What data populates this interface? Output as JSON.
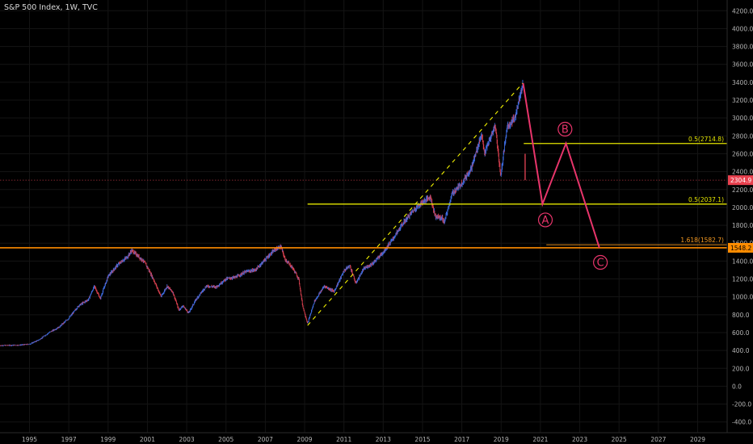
{
  "chart_data": {
    "type": "candlestick",
    "title": "S&P 500 Index, 1W, TVC",
    "xlabel": "",
    "ylabel": "",
    "xlim": [
      1993.5,
      2030.5
    ],
    "ylim": [
      -520,
      4320
    ],
    "x_ticks": [
      "1995",
      "1997",
      "1999",
      "2001",
      "2003",
      "2005",
      "2007",
      "2009",
      "2011",
      "2013",
      "2015",
      "2017",
      "2019",
      "2021",
      "2023",
      "2025",
      "2027",
      "2029"
    ],
    "y_ticks": [
      "4200.0",
      "4000.0",
      "3800.0",
      "3600.0",
      "3400.0",
      "3200.0",
      "3000.0",
      "2800.0",
      "2600.0",
      "2400.0",
      "2200.0",
      "2000.0",
      "1800.0",
      "1600.0",
      "1400.0",
      "1200.0",
      "1000.0",
      "800.0",
      "600.0",
      "400.0",
      "200.0",
      "0.0",
      "-200.0",
      "-400.0"
    ],
    "price_path": [
      [
        1993.5,
        455
      ],
      [
        1994.5,
        460
      ],
      [
        1995.0,
        470
      ],
      [
        1995.5,
        520
      ],
      [
        1996.0,
        600
      ],
      [
        1996.5,
        660
      ],
      [
        1997.0,
        760
      ],
      [
        1997.5,
        900
      ],
      [
        1998.0,
        970
      ],
      [
        1998.3,
        1120
      ],
      [
        1998.6,
        980
      ],
      [
        1999.0,
        1230
      ],
      [
        1999.5,
        1360
      ],
      [
        2000.0,
        1450
      ],
      [
        2000.2,
        1520
      ],
      [
        2000.5,
        1460
      ],
      [
        2000.8,
        1400
      ],
      [
        2001.0,
        1330
      ],
      [
        2001.3,
        1200
      ],
      [
        2001.7,
        1000
      ],
      [
        2002.0,
        1120
      ],
      [
        2002.3,
        1050
      ],
      [
        2002.6,
        850
      ],
      [
        2002.8,
        900
      ],
      [
        2003.1,
        820
      ],
      [
        2003.5,
        980
      ],
      [
        2004.0,
        1120
      ],
      [
        2004.5,
        1110
      ],
      [
        2005.0,
        1200
      ],
      [
        2005.5,
        1220
      ],
      [
        2006.0,
        1280
      ],
      [
        2006.5,
        1300
      ],
      [
        2007.0,
        1420
      ],
      [
        2007.5,
        1530
      ],
      [
        2007.8,
        1560
      ],
      [
        2008.0,
        1420
      ],
      [
        2008.4,
        1320
      ],
      [
        2008.7,
        1200
      ],
      [
        2008.9,
        900
      ],
      [
        2009.15,
        700
      ],
      [
        2009.5,
        950
      ],
      [
        2010.0,
        1120
      ],
      [
        2010.5,
        1060
      ],
      [
        2011.0,
        1290
      ],
      [
        2011.3,
        1350
      ],
      [
        2011.6,
        1150
      ],
      [
        2012.0,
        1310
      ],
      [
        2012.5,
        1380
      ],
      [
        2013.0,
        1500
      ],
      [
        2013.5,
        1650
      ],
      [
        2014.0,
        1820
      ],
      [
        2014.5,
        1960
      ],
      [
        2015.0,
        2060
      ],
      [
        2015.4,
        2120
      ],
      [
        2015.65,
        1900
      ],
      [
        2016.0,
        1880
      ],
      [
        2016.1,
        1830
      ],
      [
        2016.5,
        2150
      ],
      [
        2017.0,
        2270
      ],
      [
        2017.5,
        2450
      ],
      [
        2018.0,
        2820
      ],
      [
        2018.15,
        2600
      ],
      [
        2018.7,
        2920
      ],
      [
        2018.98,
        2350
      ],
      [
        2019.3,
        2900
      ],
      [
        2019.7,
        3000
      ],
      [
        2020.0,
        3300
      ],
      [
        2020.12,
        3390
      ],
      [
        2020.2,
        2600
      ],
      [
        2020.22,
        2304.9
      ]
    ],
    "last_price": "2304.9",
    "support_level": "1548.2",
    "fib_levels": [
      {
        "label": "0.5(2714.8)",
        "value": 2714.8,
        "color": "#e4e600"
      },
      {
        "label": "0.5(2037.1)",
        "value": 2037.1,
        "color": "#e4e600"
      },
      {
        "label": "1.618(1582.7)",
        "value": 1582.7,
        "color": "#f59a22"
      }
    ],
    "support_line": {
      "value": 1548.2,
      "color": "#ff8c00"
    },
    "trendline": {
      "from": [
        2009.15,
        680
      ],
      "to": [
        2020.1,
        3390
      ],
      "color": "#f2f200"
    },
    "projection": [
      [
        2020.12,
        3390
      ],
      [
        2021.1,
        2037
      ],
      [
        2022.3,
        2715
      ],
      [
        2024.0,
        1548
      ]
    ],
    "projection_color": "#e8356b",
    "waves": [
      {
        "label": "A",
        "x": 2021.25,
        "y": 1860
      },
      {
        "label": "B",
        "x": 2022.25,
        "y": 2875
      },
      {
        "label": "C",
        "x": 2024.05,
        "y": 1385
      }
    ]
  }
}
